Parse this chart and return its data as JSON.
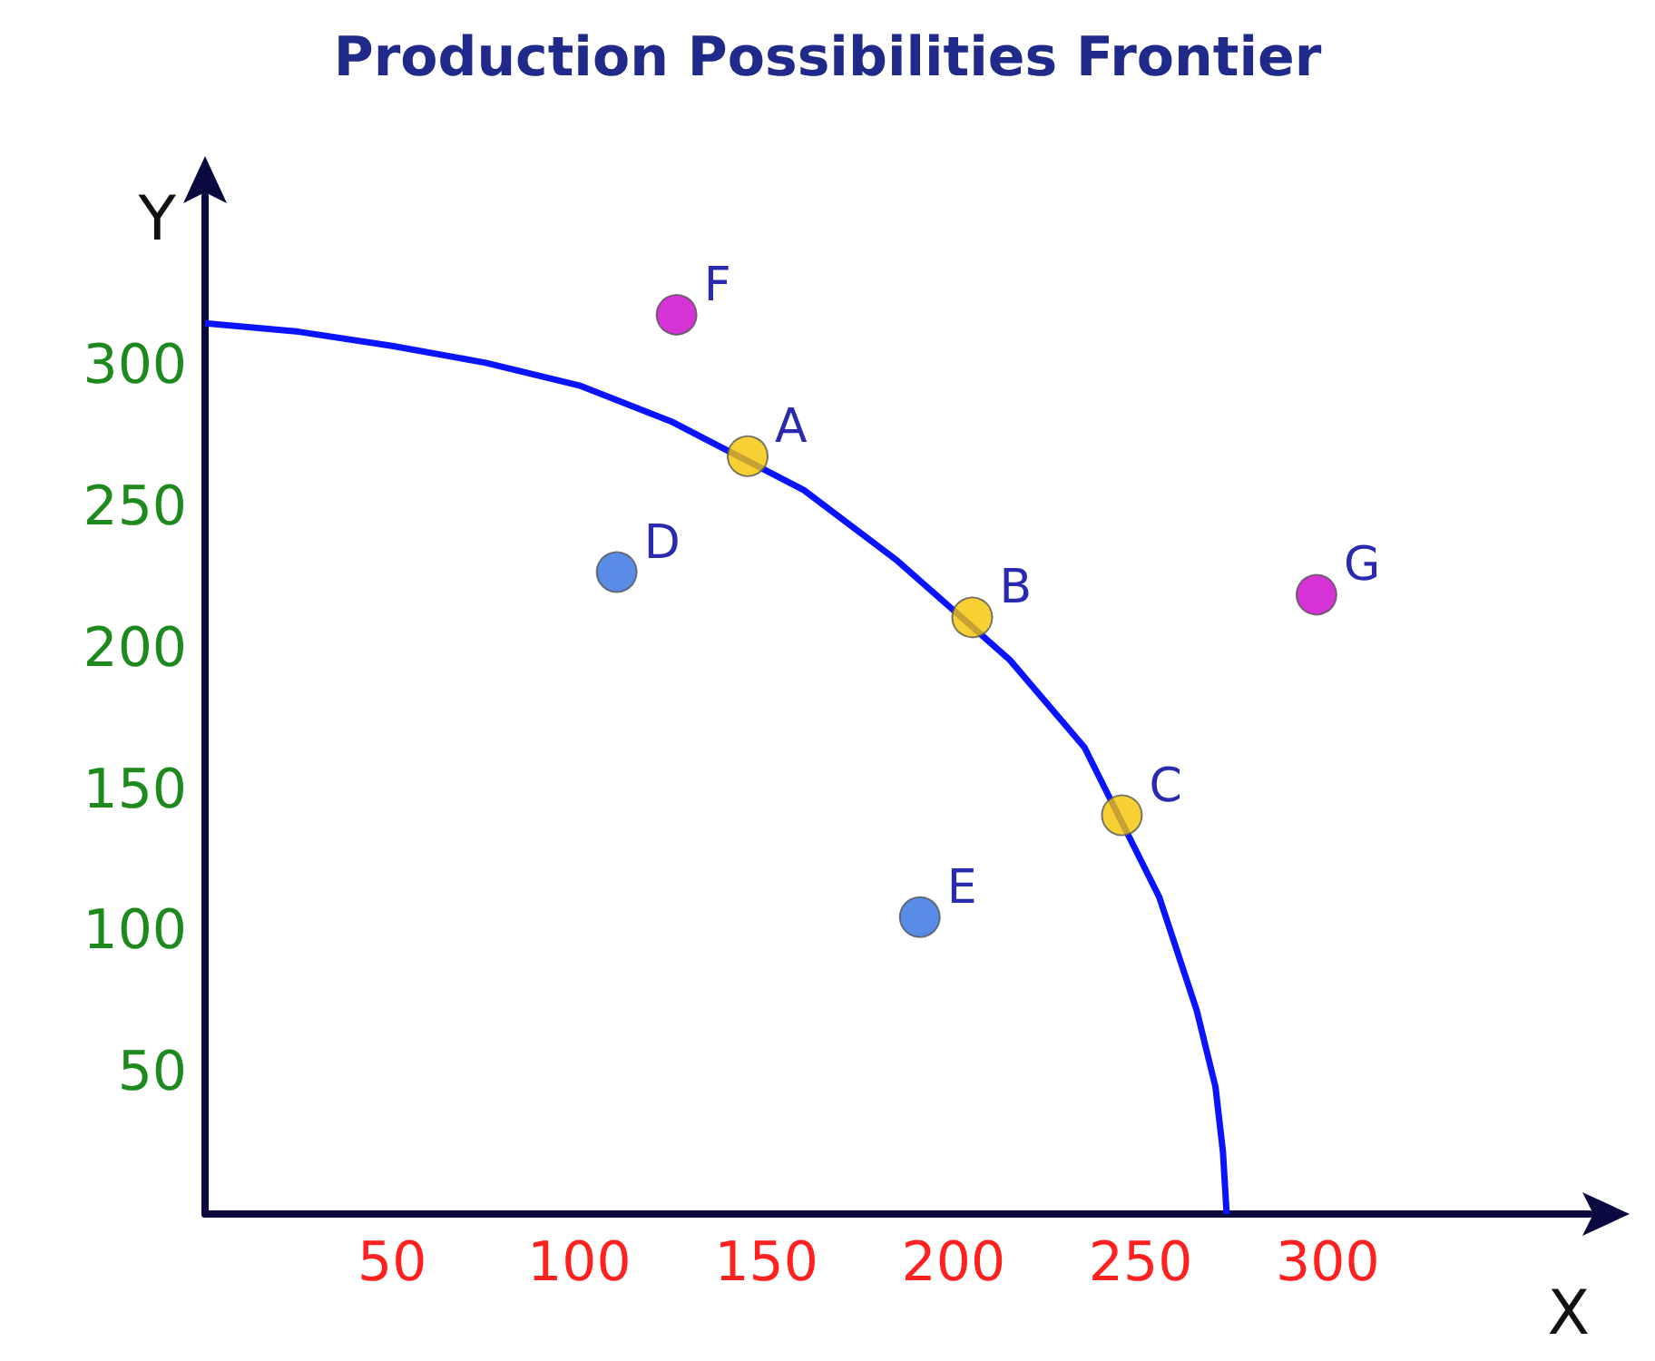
{
  "chart_data": {
    "type": "scatter",
    "title": "Production Possibilities Frontier",
    "xlabel": "X",
    "ylabel": "Y",
    "xlim": [
      0,
      370
    ],
    "ylim": [
      0,
      360
    ],
    "xticks": [
      50,
      100,
      150,
      200,
      250,
      300
    ],
    "yticks": [
      50,
      100,
      150,
      200,
      250,
      300
    ],
    "grid": false,
    "series": [
      {
        "type": "line",
        "color": "#0a14ff",
        "marker": "none",
        "x": [
          0,
          25,
          50,
          75,
          100,
          125,
          160,
          185,
          215,
          235,
          255,
          265,
          270,
          272,
          273
        ],
        "values": [
          315,
          312,
          307,
          301,
          293,
          280,
          256,
          231,
          196,
          165,
          112,
          72,
          45,
          22,
          0
        ]
      },
      {
        "marker": "circle",
        "x": [
          145,
          205,
          245,
          110,
          191,
          126,
          297
        ],
        "values": [
          268,
          211,
          141,
          227,
          105,
          318,
          219
        ],
        "colors": [
          "#f5c400",
          "#f5c400",
          "#f5c400",
          "#2f6fe0",
          "#2f6fe0",
          "#cc00cc",
          "#cc00cc"
        ]
      }
    ],
    "annotations": [
      {
        "text": "A",
        "x": 145,
        "y": 268
      },
      {
        "text": "B",
        "x": 205,
        "y": 211
      },
      {
        "text": "C",
        "x": 245,
        "y": 141
      },
      {
        "text": "D",
        "x": 110,
        "y": 227
      },
      {
        "text": "E",
        "x": 191,
        "y": 105
      },
      {
        "text": "F",
        "x": 126,
        "y": 318
      },
      {
        "text": "G",
        "x": 297,
        "y": 219
      }
    ]
  }
}
